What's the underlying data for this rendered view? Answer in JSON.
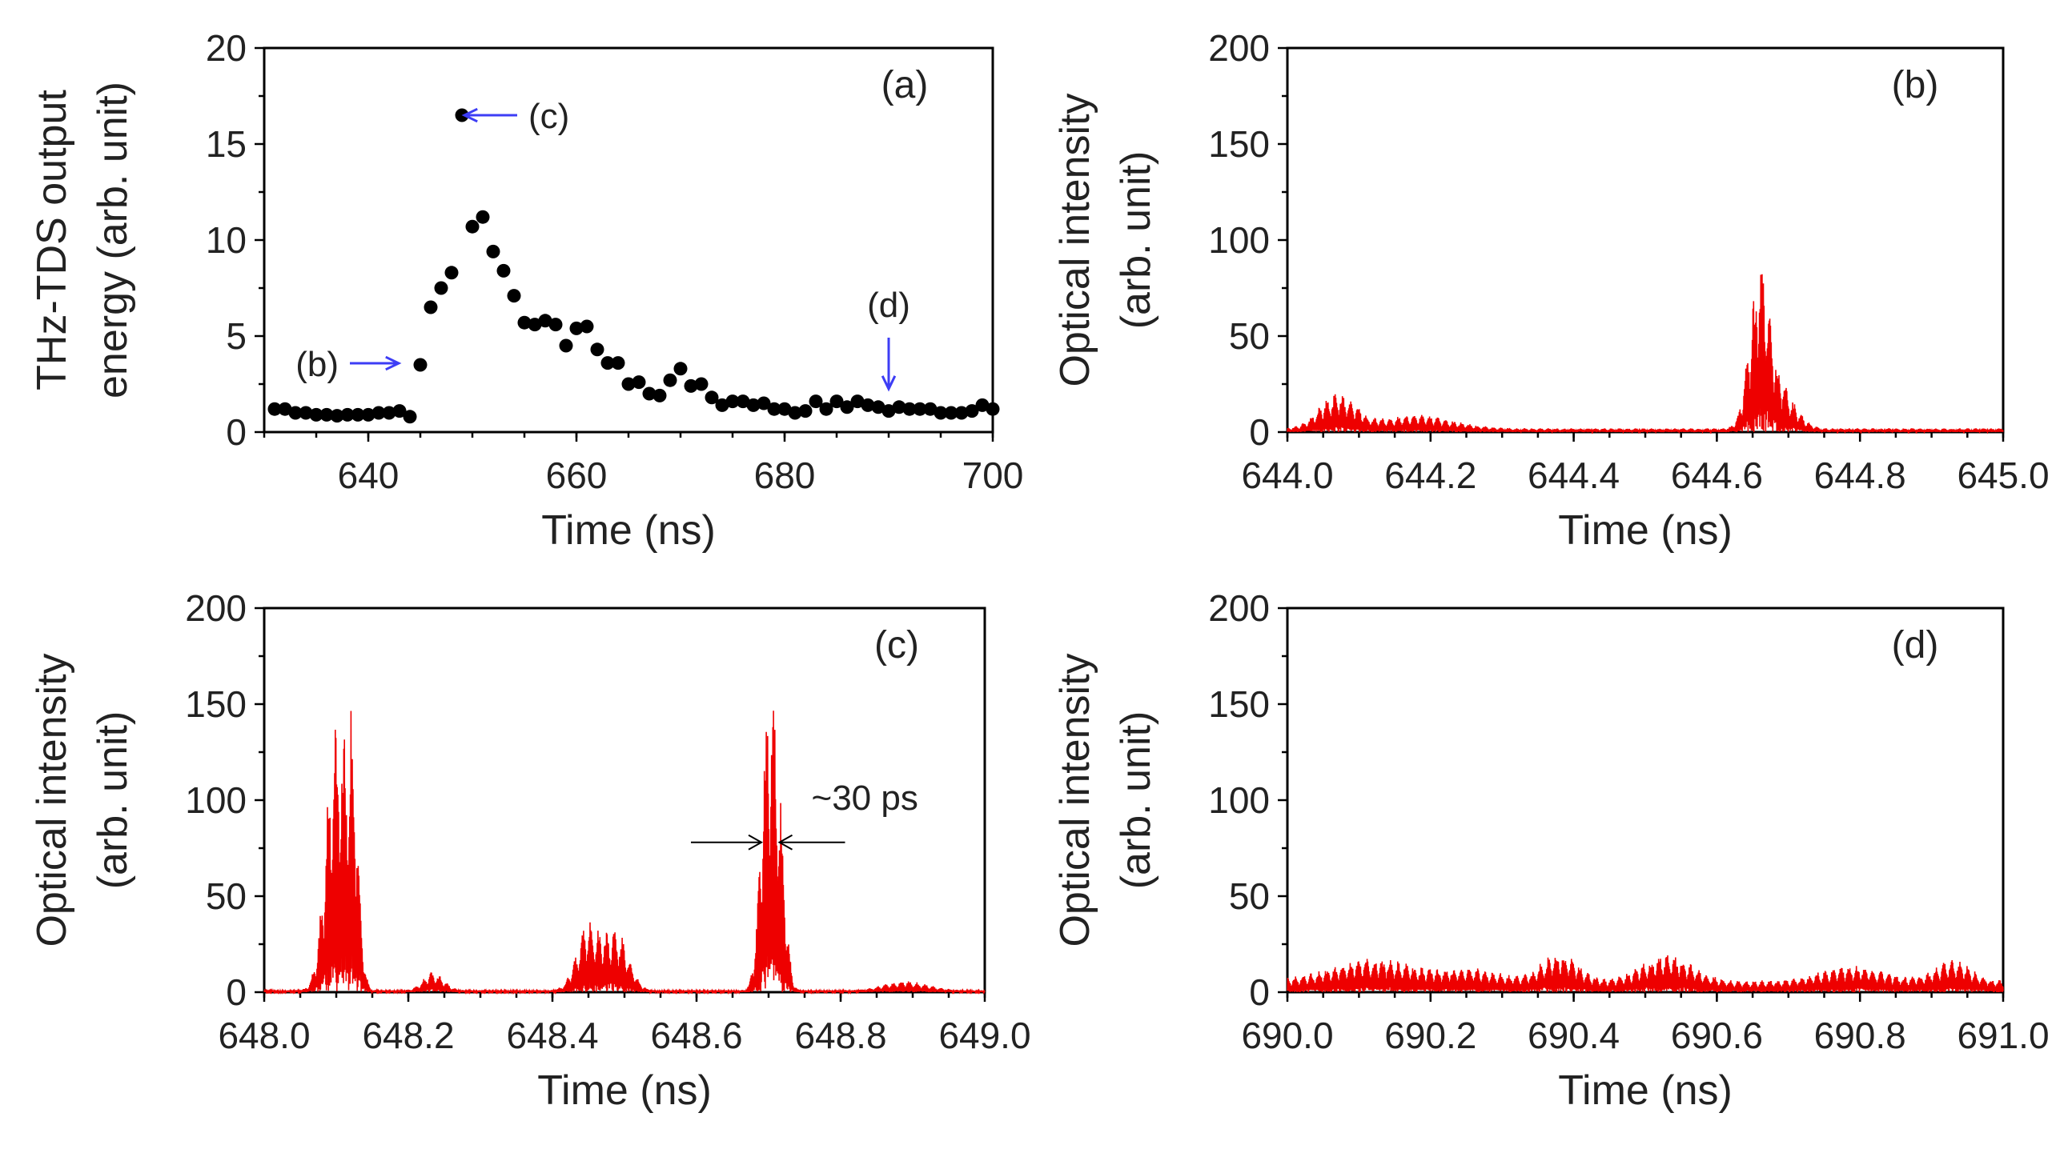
{
  "chart_data": [
    {
      "id": "a",
      "type": "scatter",
      "panel_label": "(a)",
      "xlabel": "Time (ns)",
      "ylabel_lines": [
        "THz-TDS output",
        "energy (arb. unit)"
      ],
      "xlim": [
        630,
        700
      ],
      "ylim": [
        0,
        20
      ],
      "xticks": [
        640,
        660,
        680,
        700
      ],
      "xtick_labels": [
        "640",
        "660",
        "680",
        "700"
      ],
      "yticks": [
        0,
        5,
        10,
        15,
        20
      ],
      "ytick_labels": [
        "0",
        "5",
        "10",
        "15",
        "20"
      ],
      "marker_color": "#000000",
      "x": [
        631,
        632,
        633,
        634,
        635,
        636,
        637,
        638,
        639,
        640,
        641,
        642,
        643,
        644,
        645,
        646,
        647,
        648,
        649,
        650,
        651,
        652,
        653,
        654,
        655,
        656,
        657,
        658,
        659,
        660,
        661,
        662,
        663,
        664,
        665,
        666,
        667,
        668,
        669,
        670,
        671,
        672,
        673,
        674,
        675,
        676,
        677,
        678,
        679,
        680,
        681,
        682,
        683,
        684,
        685,
        686,
        687,
        688,
        689,
        690,
        691,
        692,
        693,
        694,
        695,
        696,
        697,
        698,
        699,
        700
      ],
      "y": [
        1.2,
        1.2,
        1.0,
        1.0,
        0.9,
        0.9,
        0.85,
        0.9,
        0.9,
        0.9,
        1.0,
        1.0,
        1.1,
        0.8,
        3.5,
        6.5,
        7.5,
        8.3,
        16.5,
        10.7,
        11.2,
        9.4,
        8.4,
        7.1,
        5.7,
        5.6,
        5.8,
        5.6,
        4.5,
        5.4,
        5.5,
        4.3,
        3.6,
        3.6,
        2.5,
        2.6,
        2.0,
        1.9,
        2.7,
        3.3,
        2.4,
        2.5,
        1.8,
        1.4,
        1.6,
        1.6,
        1.4,
        1.5,
        1.2,
        1.2,
        1.0,
        1.1,
        1.6,
        1.2,
        1.6,
        1.3,
        1.6,
        1.4,
        1.3,
        1.1,
        1.3,
        1.2,
        1.2,
        1.2,
        1.0,
        1.0,
        1.0,
        1.1,
        1.4,
        1.2
      ],
      "annotations": [
        {
          "text": "(b)",
          "at_x": 644,
          "at_y": 3.5,
          "direction": "right"
        },
        {
          "text": "(c)",
          "at_x": 648,
          "at_y": 16.5,
          "direction": "left"
        },
        {
          "text": "(d)",
          "at_x": 690,
          "at_y": 1.5,
          "direction": "down"
        }
      ],
      "arrow_color": "#3d3df5"
    },
    {
      "id": "b",
      "type": "line",
      "panel_label": "(b)",
      "xlabel": "Time (ns)",
      "ylabel_lines": [
        "Optical intensity",
        "(arb. unit)"
      ],
      "xlim": [
        644.0,
        645.0
      ],
      "ylim": [
        0,
        200
      ],
      "xticks": [
        644.0,
        644.2,
        644.4,
        644.6,
        644.8,
        645.0
      ],
      "xtick_labels": [
        "644.0",
        "644.2",
        "644.4",
        "644.6",
        "644.8",
        "645.0"
      ],
      "yticks": [
        0,
        50,
        100,
        150,
        200
      ],
      "ytick_labels": [
        "0",
        "50",
        "100",
        "150",
        "200"
      ],
      "line_color": "#ee0000",
      "pulses": [
        {
          "center": 644.07,
          "width": 0.025,
          "peak": 18
        },
        {
          "center": 644.18,
          "width": 0.05,
          "peak": 7
        },
        {
          "center": 644.66,
          "width": 0.014,
          "peak": 82
        },
        {
          "center": 644.69,
          "width": 0.02,
          "peak": 20
        }
      ],
      "baseline": 2
    },
    {
      "id": "c",
      "type": "line",
      "panel_label": "(c)",
      "xlabel": "Time (ns)",
      "ylabel_lines": [
        "Optical intensity",
        "(arb. unit)"
      ],
      "xlim": [
        648.0,
        649.0
      ],
      "ylim": [
        0,
        200
      ],
      "xticks": [
        648.0,
        648.2,
        648.4,
        648.6,
        648.8,
        649.0
      ],
      "xtick_labels": [
        "648.0",
        "648.2",
        "648.4",
        "648.6",
        "648.8",
        "649.0"
      ],
      "yticks": [
        0,
        50,
        100,
        150,
        200
      ],
      "ytick_labels": [
        "0",
        "50",
        "100",
        "150",
        "200"
      ],
      "line_color": "#ee0000",
      "pulses": [
        {
          "center": 648.1,
          "width": 0.014,
          "peak": 142
        },
        {
          "center": 648.123,
          "width": 0.008,
          "peak": 110
        },
        {
          "center": 648.235,
          "width": 0.014,
          "peak": 10
        },
        {
          "center": 648.45,
          "width": 0.016,
          "peak": 35
        },
        {
          "center": 648.49,
          "width": 0.016,
          "peak": 31
        },
        {
          "center": 648.7,
          "width": 0.01,
          "peak": 157
        },
        {
          "center": 648.716,
          "width": 0.008,
          "peak": 70
        },
        {
          "center": 648.89,
          "width": 0.03,
          "peak": 5
        }
      ],
      "baseline": 1,
      "annotation_text": "~30 ps"
    },
    {
      "id": "d",
      "type": "line",
      "panel_label": "(d)",
      "xlabel": "Time (ns)",
      "ylabel_lines": [
        "Optical intensity",
        "(arb. unit)"
      ],
      "xlim": [
        690.0,
        691.0
      ],
      "ylim": [
        0,
        200
      ],
      "xticks": [
        690.0,
        690.2,
        690.4,
        690.6,
        690.8,
        691.0
      ],
      "xtick_labels": [
        "690.0",
        "690.2",
        "690.4",
        "690.6",
        "690.8",
        "691.0"
      ],
      "yticks": [
        0,
        50,
        100,
        150,
        200
      ],
      "ytick_labels": [
        "0",
        "50",
        "100",
        "150",
        "200"
      ],
      "line_color": "#ee0000",
      "pulses": [
        {
          "center": 690.12,
          "width": 0.06,
          "peak": 12
        },
        {
          "center": 690.26,
          "width": 0.04,
          "peak": 6
        },
        {
          "center": 690.38,
          "width": 0.025,
          "peak": 15
        },
        {
          "center": 690.53,
          "width": 0.035,
          "peak": 14
        },
        {
          "center": 690.79,
          "width": 0.045,
          "peak": 8
        },
        {
          "center": 690.93,
          "width": 0.025,
          "peak": 11
        }
      ],
      "baseline": 6
    }
  ]
}
